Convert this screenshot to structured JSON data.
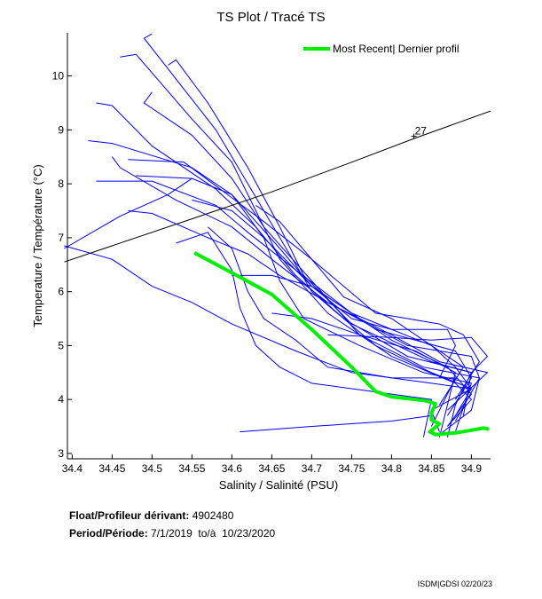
{
  "title": "TS Plot / Tracé TS",
  "chart_data": {
    "type": "line",
    "title": "TS Plot / Tracé TS",
    "xlabel": "Salinity / Salinité (PSU)",
    "ylabel": "Temperature / Température (°C)",
    "xlim": [
      34.394,
      34.924
    ],
    "ylim": [
      2.9,
      10.8
    ],
    "xticks": [
      "34.4",
      "34.45",
      "34.5",
      "34.55",
      "34.6",
      "34.65",
      "34.7",
      "34.75",
      "34.8",
      "34.85",
      "34.9"
    ],
    "yticks": [
      "3",
      "4",
      "5",
      "6",
      "7",
      "8",
      "9",
      "10"
    ],
    "legend": {
      "label": "Most Recent| Dernier profil",
      "placement": "top-right"
    },
    "colors": {
      "profiles": "#0000ff",
      "most_recent": "#00ee00",
      "isopycnal": "#000000"
    },
    "isopycnal": {
      "label": "27",
      "points": [
        [
          34.39,
          6.55
        ],
        [
          34.55,
          7.35
        ],
        [
          34.65,
          7.85
        ],
        [
          34.75,
          8.4
        ],
        [
          34.83,
          8.85
        ],
        [
          34.924,
          9.35
        ]
      ]
    },
    "most_recent": [
      [
        34.553,
        6.72
      ],
      [
        34.6,
        6.35
      ],
      [
        34.65,
        5.95
      ],
      [
        34.7,
        5.3
      ],
      [
        34.75,
        4.6
      ],
      [
        34.78,
        4.15
      ],
      [
        34.8,
        4.05
      ],
      [
        34.83,
        4.0
      ],
      [
        34.845,
        3.97
      ],
      [
        34.855,
        3.92
      ],
      [
        34.85,
        3.75
      ],
      [
        34.85,
        3.62
      ],
      [
        34.86,
        3.55
      ],
      [
        34.848,
        3.4
      ],
      [
        34.855,
        3.35
      ],
      [
        34.88,
        3.38
      ],
      [
        34.9,
        3.43
      ],
      [
        34.915,
        3.47
      ],
      [
        34.922,
        3.45
      ]
    ],
    "profiles": [
      [
        [
          34.5,
          10.78
        ],
        [
          34.49,
          10.7
        ],
        [
          34.58,
          9.0
        ],
        [
          34.62,
          8.0
        ],
        [
          34.66,
          7.0
        ],
        [
          34.7,
          6.0
        ],
        [
          34.78,
          5.0
        ],
        [
          34.85,
          4.5
        ],
        [
          34.9,
          4.2
        ],
        [
          34.85,
          3.8
        ],
        [
          34.86,
          3.4
        ]
      ],
      [
        [
          34.46,
          10.35
        ],
        [
          34.48,
          10.4
        ],
        [
          34.55,
          9.2
        ],
        [
          34.6,
          8.4
        ],
        [
          34.63,
          7.5
        ],
        [
          34.66,
          6.6
        ],
        [
          34.72,
          5.6
        ],
        [
          34.8,
          4.8
        ],
        [
          34.88,
          4.3
        ],
        [
          34.9,
          4.0
        ],
        [
          34.87,
          3.5
        ]
      ],
      [
        [
          34.52,
          10.2
        ],
        [
          34.53,
          10.3
        ],
        [
          34.57,
          9.5
        ],
        [
          34.62,
          8.3
        ],
        [
          34.66,
          7.2
        ],
        [
          34.69,
          6.3
        ],
        [
          34.75,
          5.4
        ],
        [
          34.85,
          4.7
        ],
        [
          34.9,
          4.5
        ],
        [
          34.88,
          3.9
        ],
        [
          34.87,
          3.3
        ]
      ],
      [
        [
          34.5,
          9.7
        ],
        [
          34.49,
          9.5
        ],
        [
          34.55,
          8.9
        ],
        [
          34.6,
          8.1
        ],
        [
          34.64,
          7.2
        ],
        [
          34.7,
          6.2
        ],
        [
          34.76,
          5.2
        ],
        [
          34.84,
          4.6
        ],
        [
          34.91,
          4.4
        ],
        [
          34.9,
          3.8
        ],
        [
          34.86,
          3.35
        ]
      ],
      [
        [
          34.43,
          9.5
        ],
        [
          34.45,
          9.45
        ],
        [
          34.5,
          8.7
        ],
        [
          34.58,
          7.9
        ],
        [
          34.63,
          7.2
        ],
        [
          34.68,
          6.3
        ],
        [
          34.74,
          5.5
        ],
        [
          34.82,
          4.8
        ],
        [
          34.9,
          4.5
        ],
        [
          34.89,
          3.7
        ]
      ],
      [
        [
          34.42,
          8.8
        ],
        [
          34.45,
          8.75
        ],
        [
          34.55,
          8.3
        ],
        [
          34.6,
          7.8
        ],
        [
          34.66,
          6.8
        ],
        [
          34.7,
          6.1
        ],
        [
          34.8,
          5.1
        ],
        [
          34.87,
          4.6
        ],
        [
          34.9,
          4.1
        ],
        [
          34.87,
          3.5
        ]
      ],
      [
        [
          34.45,
          8.5
        ],
        [
          34.46,
          8.3
        ],
        [
          34.53,
          7.7
        ],
        [
          34.6,
          7.2
        ],
        [
          34.65,
          6.6
        ],
        [
          34.72,
          5.8
        ],
        [
          34.82,
          5.0
        ],
        [
          34.9,
          4.8
        ],
        [
          34.91,
          4.4
        ],
        [
          34.88,
          3.6
        ]
      ],
      [
        [
          34.43,
          8.05
        ],
        [
          34.5,
          8.05
        ],
        [
          34.58,
          7.6
        ],
        [
          34.62,
          7.1
        ],
        [
          34.68,
          6.4
        ],
        [
          34.75,
          5.6
        ],
        [
          34.85,
          5.0
        ],
        [
          34.89,
          4.6
        ],
        [
          34.86,
          3.9
        ]
      ],
      [
        [
          34.48,
          8.15
        ],
        [
          34.55,
          8.1
        ],
        [
          34.6,
          7.8
        ],
        [
          34.64,
          7.0
        ],
        [
          34.7,
          6.1
        ],
        [
          34.78,
          5.3
        ],
        [
          34.88,
          4.9
        ],
        [
          34.9,
          4.4
        ],
        [
          34.87,
          3.7
        ]
      ],
      [
        [
          34.47,
          8.45
        ],
        [
          34.54,
          8.4
        ],
        [
          34.64,
          7.3
        ],
        [
          34.7,
          6.6
        ],
        [
          34.78,
          5.6
        ],
        [
          34.86,
          5.4
        ],
        [
          34.89,
          5.2
        ],
        [
          34.91,
          4.7
        ],
        [
          34.88,
          4.0
        ]
      ],
      [
        [
          34.39,
          6.8
        ],
        [
          34.46,
          7.4
        ],
        [
          34.52,
          7.8
        ],
        [
          34.55,
          8.1
        ]
      ],
      [
        [
          34.39,
          6.85
        ],
        [
          34.45,
          6.6
        ],
        [
          34.5,
          6.1
        ],
        [
          34.55,
          5.8
        ],
        [
          34.6,
          5.4
        ],
        [
          34.68,
          4.9
        ],
        [
          34.75,
          4.5
        ],
        [
          34.85,
          4.3
        ],
        [
          34.9,
          4.2
        ],
        [
          34.88,
          3.7
        ]
      ],
      [
        [
          34.47,
          7.5
        ],
        [
          34.5,
          7.45
        ],
        [
          34.57,
          7.0
        ],
        [
          34.62,
          6.7
        ],
        [
          34.66,
          6.3
        ],
        [
          34.72,
          5.8
        ],
        [
          34.8,
          5.2
        ],
        [
          34.86,
          4.7
        ],
        [
          34.92,
          4.5
        ],
        [
          34.87,
          3.8
        ]
      ],
      [
        [
          34.53,
          6.9
        ],
        [
          34.57,
          7.1
        ],
        [
          34.6,
          6.4
        ],
        [
          34.61,
          5.7
        ],
        [
          34.63,
          5.0
        ],
        [
          34.66,
          4.6
        ],
        [
          34.7,
          4.3
        ],
        [
          34.8,
          4.1
        ],
        [
          34.85,
          4.0
        ],
        [
          34.84,
          3.3
        ]
      ],
      [
        [
          34.57,
          7.2
        ],
        [
          34.6,
          6.8
        ],
        [
          34.62,
          6.0
        ],
        [
          34.64,
          5.5
        ],
        [
          34.68,
          5.1
        ],
        [
          34.72,
          4.6
        ],
        [
          34.8,
          4.4
        ],
        [
          34.88,
          4.4
        ],
        [
          34.85,
          3.5
        ]
      ],
      [
        [
          34.61,
          3.4
        ],
        [
          34.7,
          3.5
        ],
        [
          34.8,
          3.6
        ],
        [
          34.85,
          3.7
        ]
      ],
      [
        [
          34.6,
          6.3
        ],
        [
          34.65,
          6.3
        ],
        [
          34.7,
          6.1
        ],
        [
          34.75,
          5.5
        ],
        [
          34.8,
          5.3
        ],
        [
          34.87,
          5.3
        ],
        [
          34.88,
          5.0
        ],
        [
          34.86,
          4.4
        ]
      ],
      [
        [
          34.63,
          7.6
        ],
        [
          34.66,
          7.3
        ],
        [
          34.7,
          6.6
        ],
        [
          34.74,
          5.9
        ],
        [
          34.8,
          5.5
        ],
        [
          34.85,
          5.0
        ],
        [
          34.88,
          4.6
        ],
        [
          34.9,
          4.2
        ]
      ],
      [
        [
          34.55,
          7.7
        ],
        [
          34.6,
          7.5
        ],
        [
          34.64,
          7.0
        ],
        [
          34.66,
          6.2
        ],
        [
          34.69,
          5.5
        ],
        [
          34.76,
          5.0
        ],
        [
          34.84,
          4.5
        ],
        [
          34.9,
          4.3
        ],
        [
          34.88,
          3.4
        ]
      ],
      [
        [
          34.72,
          5.2
        ],
        [
          34.8,
          5.15
        ],
        [
          34.85,
          5.1
        ],
        [
          34.9,
          5.15
        ],
        [
          34.92,
          4.8
        ],
        [
          34.9,
          4.5
        ]
      ],
      [
        [
          34.65,
          5.6
        ],
        [
          34.7,
          5.5
        ],
        [
          34.76,
          5.2
        ],
        [
          34.83,
          4.9
        ],
        [
          34.88,
          4.5
        ],
        [
          34.86,
          3.3
        ]
      ]
    ]
  },
  "info": {
    "float_label": "Float/Profileur dérivant:",
    "float_value": "4902480",
    "period_label": "Period/Période:",
    "period_from": "7/1/2019",
    "period_sep": "to/à",
    "period_to": "10/23/2020"
  },
  "footer": "ISDM|GDSI 02/20/23"
}
